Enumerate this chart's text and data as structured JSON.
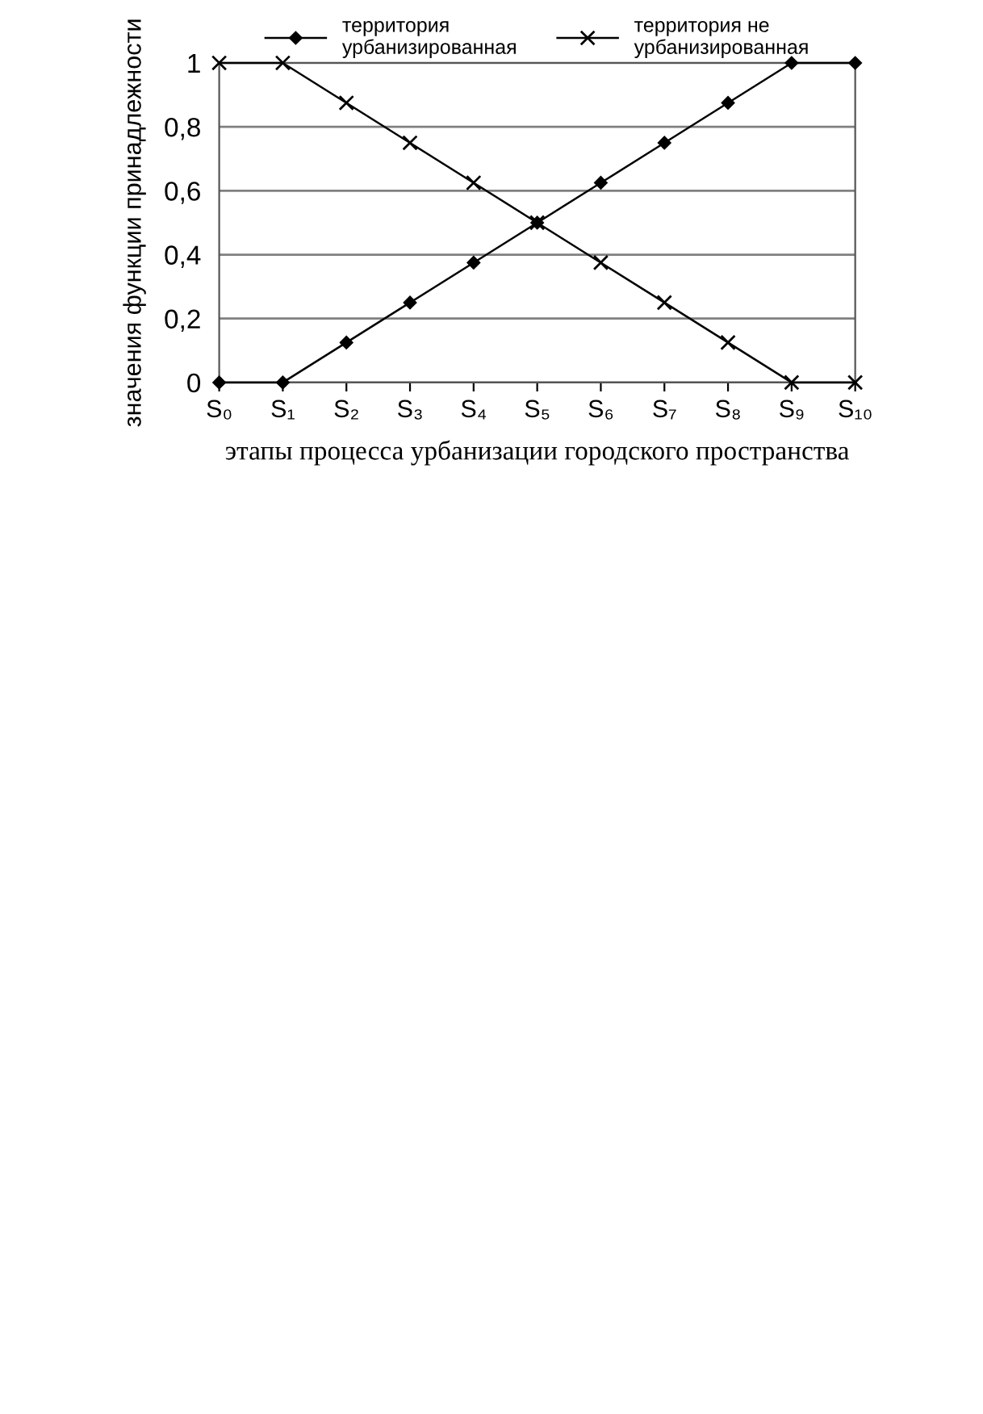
{
  "chart_data": {
    "type": "line",
    "xlabel": "этапы процесса урбанизации городского пространства",
    "ylabel": "значения функции принадлежности",
    "categories": [
      "S₀",
      "S₁",
      "S₂",
      "S₃",
      "S₄",
      "S₅",
      "S₆",
      "S₇",
      "S₈",
      "S₉",
      "S₁₀"
    ],
    "series": [
      {
        "name": "территория\nурбанизированная",
        "color": "#000000",
        "marker": "diamond",
        "values": [
          0,
          0,
          0.125,
          0.25,
          0.375,
          0.5,
          0.625,
          0.75,
          0.875,
          1,
          1
        ]
      },
      {
        "name": "территория не\nурбанизированная",
        "color": "#000000",
        "marker": "cross",
        "values": [
          1,
          1,
          0.875,
          0.75,
          0.625,
          0.5,
          0.375,
          0.25,
          0.125,
          0,
          0
        ]
      }
    ],
    "ylim": [
      0,
      1
    ],
    "yticks": [
      {
        "value": 0,
        "label": "0"
      },
      {
        "value": 0.2,
        "label": "0,2"
      },
      {
        "value": 0.4,
        "label": "0,4"
      },
      {
        "value": 0.6,
        "label": "0,6"
      },
      {
        "value": 0.8,
        "label": "0,8"
      },
      {
        "value": 1,
        "label": "1"
      }
    ],
    "grid": "y",
    "legend": "top",
    "line_style": "solid"
  }
}
